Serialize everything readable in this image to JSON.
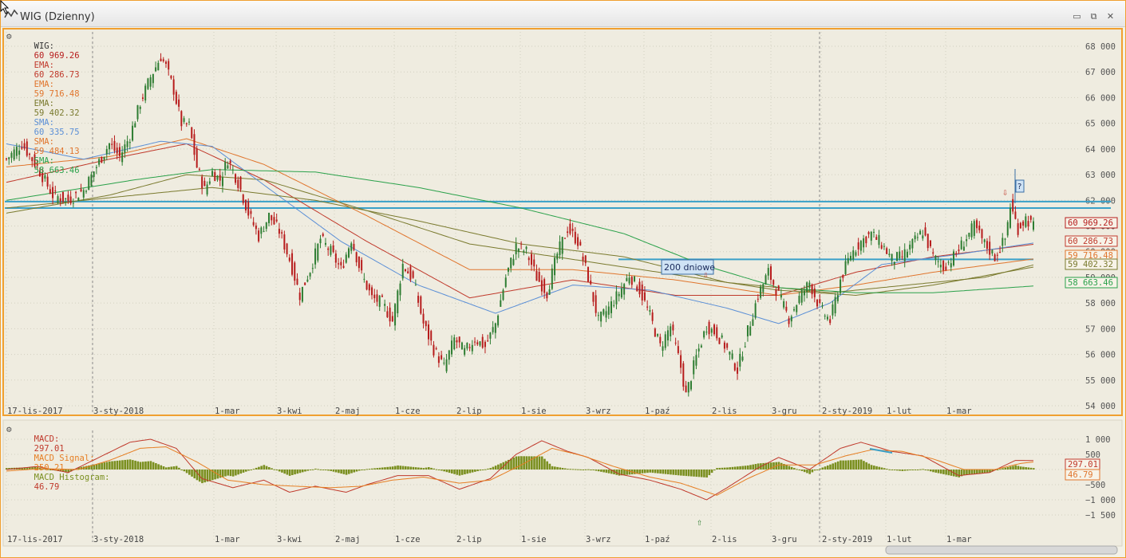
{
  "window": {
    "title": "WIG (Dzienny)",
    "buttons": [
      "minimize",
      "restore",
      "close"
    ]
  },
  "colors": {
    "up": "#2e7d32",
    "down": "#b71c1c",
    "ema60": "#e0752d",
    "ema59": "#c86a3a",
    "sma60": "#5b8fd6",
    "sma59": "#7a7a2e",
    "sma58": "#2aa14a",
    "macd": "#c0392b",
    "signal": "#e67e22",
    "hist": "#7a8f1f",
    "hline": "#3aa0c8"
  },
  "price_legend": {
    "wig_label": "WIG:",
    "wig_value": "60 969.26",
    "ema60_label": "EMA:",
    "ema60_value": "60 286.73",
    "ema59_label": "EMA:",
    "ema59_value": "59 716.48",
    "ema59b_label": "EMA:",
    "ema59b_value": "59 402.32",
    "sma60_label": "SMA:",
    "sma60_value": "60 335.75",
    "sma59_label": "SMA:",
    "sma59_value": "59 484.13",
    "sma58_label": "SMA:",
    "sma58_value": "58 663.46"
  },
  "macd_legend": {
    "macd_label": "MACD:",
    "macd_value": "297.01",
    "signal_label": "MACD Signal:",
    "signal_value": "250.21",
    "hist_label": "MACD Histogram:",
    "hist_value": "46.79"
  },
  "annotations": {
    "support_label": "200 dniowe",
    "question": "?"
  },
  "chart_data": [
    {
      "type": "candlestick",
      "title": "WIG (Dzienny)",
      "x_ticks": [
        "17-lis-2017",
        "3-sty-2018",
        "1-mar",
        "3-kwi",
        "2-maj",
        "1-cze",
        "2-lip",
        "1-sie",
        "3-wrz",
        "1-paź",
        "2-lis",
        "3-gru",
        "2-sty-2019",
        "1-lut",
        "1-mar"
      ],
      "y_ticks": [
        "68 000",
        "67 000",
        "66 000",
        "65 000",
        "64 000",
        "63 000",
        "62 000",
        "61 000",
        "60 000",
        "59 000",
        "58 000",
        "57 000",
        "56 000",
        "55 000",
        "54 000"
      ],
      "ylim": [
        54000,
        68000
      ],
      "horizontal_lines": [
        61950,
        61700,
        59700
      ],
      "close_path": [
        [
          0,
          63600
        ],
        [
          6,
          64200
        ],
        [
          12,
          63300
        ],
        [
          18,
          62200
        ],
        [
          24,
          62000
        ],
        [
          30,
          62400
        ],
        [
          36,
          63500
        ],
        [
          40,
          64200
        ],
        [
          44,
          63700
        ],
        [
          48,
          64500
        ],
        [
          52,
          65800
        ],
        [
          56,
          66800
        ],
        [
          60,
          67600
        ],
        [
          62,
          67200
        ],
        [
          65,
          66300
        ],
        [
          68,
          65000
        ],
        [
          71,
          64900
        ],
        [
          74,
          63300
        ],
        [
          77,
          62400
        ],
        [
          80,
          63100
        ],
        [
          83,
          62800
        ],
        [
          86,
          63600
        ],
        [
          90,
          62700
        ],
        [
          94,
          61500
        ],
        [
          98,
          60600
        ],
        [
          102,
          61400
        ],
        [
          106,
          60800
        ],
        [
          110,
          59700
        ],
        [
          114,
          58300
        ],
        [
          118,
          59300
        ],
        [
          122,
          60500
        ],
        [
          126,
          60000
        ],
        [
          130,
          59300
        ],
        [
          134,
          60500
        ],
        [
          138,
          59100
        ],
        [
          142,
          58200
        ],
        [
          146,
          58000
        ],
        [
          150,
          57300
        ],
        [
          154,
          59500
        ],
        [
          158,
          58900
        ],
        [
          162,
          57200
        ],
        [
          166,
          56200
        ],
        [
          170,
          55500
        ],
        [
          174,
          56600
        ],
        [
          178,
          56100
        ],
        [
          182,
          56600
        ],
        [
          186,
          56300
        ],
        [
          190,
          57200
        ],
        [
          194,
          59000
        ],
        [
          198,
          60200
        ],
        [
          202,
          60000
        ],
        [
          206,
          59000
        ],
        [
          210,
          58400
        ],
        [
          214,
          59900
        ],
        [
          218,
          60900
        ],
        [
          222,
          60400
        ],
        [
          226,
          59000
        ],
        [
          230,
          57300
        ],
        [
          234,
          57800
        ],
        [
          238,
          58400
        ],
        [
          242,
          59100
        ],
        [
          246,
          58500
        ],
        [
          250,
          57500
        ],
        [
          254,
          56300
        ],
        [
          258,
          57100
        ],
        [
          262,
          55500
        ],
        [
          264,
          54400
        ],
        [
          268,
          55900
        ],
        [
          272,
          57100
        ],
        [
          276,
          56800
        ],
        [
          280,
          56200
        ],
        [
          284,
          55400
        ],
        [
          288,
          56900
        ],
        [
          292,
          58300
        ],
        [
          296,
          59200
        ],
        [
          300,
          58300
        ],
        [
          304,
          57400
        ],
        [
          308,
          58200
        ],
        [
          312,
          58800
        ],
        [
          316,
          57800
        ],
        [
          320,
          57300
        ],
        [
          324,
          58900
        ],
        [
          328,
          59900
        ],
        [
          332,
          60400
        ],
        [
          336,
          60700
        ],
        [
          340,
          60300
        ],
        [
          344,
          59700
        ],
        [
          348,
          59800
        ],
        [
          352,
          60300
        ],
        [
          356,
          60800
        ],
        [
          360,
          59800
        ],
        [
          364,
          59400
        ],
        [
          368,
          59800
        ],
        [
          372,
          60400
        ],
        [
          376,
          61000
        ],
        [
          380,
          60300
        ],
        [
          384,
          59800
        ],
        [
          388,
          60500
        ],
        [
          390,
          61800
        ],
        [
          393,
          60900
        ],
        [
          396,
          61300
        ],
        [
          399,
          60969
        ]
      ],
      "series": [
        {
          "name": "EMA 60 286.73",
          "path": [
            [
              0,
              62700
            ],
            [
              40,
              63600
            ],
            [
              70,
              64200
            ],
            [
              100,
              62800
            ],
            [
              140,
              60400
            ],
            [
              180,
              58200
            ],
            [
              220,
              58900
            ],
            [
              260,
              58300
            ],
            [
              300,
              58300
            ],
            [
              330,
              59200
            ],
            [
              360,
              59800
            ],
            [
              399,
              60287
            ]
          ]
        },
        {
          "name": "EMA 59 716.48",
          "path": [
            [
              0,
              63300
            ],
            [
              40,
              63700
            ],
            [
              70,
              64400
            ],
            [
              100,
              63400
            ],
            [
              140,
              61400
            ],
            [
              180,
              59300
            ],
            [
              220,
              59300
            ],
            [
              260,
              58900
            ],
            [
              300,
              58300
            ],
            [
              330,
              58700
            ],
            [
              360,
              59200
            ],
            [
              399,
              59716
            ]
          ]
        },
        {
          "name": "EMA 59 402.32",
          "path": [
            [
              0,
              61500
            ],
            [
              40,
              62200
            ],
            [
              70,
              63000
            ],
            [
              100,
              62800
            ],
            [
              140,
              61600
            ],
            [
              180,
              60300
            ],
            [
              220,
              59700
            ],
            [
              260,
              59100
            ],
            [
              300,
              58500
            ],
            [
              330,
              58300
            ],
            [
              360,
              58700
            ],
            [
              399,
              59402
            ]
          ]
        },
        {
          "name": "SMA 60 335.75",
          "path": [
            [
              0,
              64200
            ],
            [
              30,
              63600
            ],
            [
              60,
              64300
            ],
            [
              80,
              64100
            ],
            [
              100,
              62600
            ],
            [
              130,
              60400
            ],
            [
              160,
              58700
            ],
            [
              190,
              57600
            ],
            [
              220,
              58700
            ],
            [
              250,
              58500
            ],
            [
              280,
              57800
            ],
            [
              300,
              57200
            ],
            [
              320,
              58000
            ],
            [
              340,
              59500
            ],
            [
              370,
              59900
            ],
            [
              399,
              60336
            ]
          ]
        },
        {
          "name": "SMA 59 484.13",
          "path": [
            [
              0,
              61700
            ],
            [
              50,
              62200
            ],
            [
              80,
              62500
            ],
            [
              120,
              62000
            ],
            [
              160,
              61200
            ],
            [
              200,
              60300
            ],
            [
              240,
              59800
            ],
            [
              280,
              58800
            ],
            [
              320,
              58400
            ],
            [
              350,
              58700
            ],
            [
              380,
              59000
            ],
            [
              399,
              59484
            ]
          ]
        },
        {
          "name": "SMA 58 663.46",
          "path": [
            [
              0,
              62000
            ],
            [
              50,
              62800
            ],
            [
              80,
              63200
            ],
            [
              120,
              63100
            ],
            [
              160,
              62500
            ],
            [
              200,
              61700
            ],
            [
              240,
              60700
            ],
            [
              270,
              59500
            ],
            [
              300,
              58600
            ],
            [
              330,
              58400
            ],
            [
              360,
              58400
            ],
            [
              399,
              58663
            ]
          ]
        }
      ]
    },
    {
      "type": "line",
      "title": "MACD",
      "y_ticks": [
        "1 000",
        "500",
        "0",
        "−500",
        "−1 000",
        "−1 500"
      ],
      "ylim": [
        -1500,
        1000
      ],
      "series": [
        {
          "name": "MACD: 297.01",
          "path": [
            [
              0,
              0
            ],
            [
              12,
              100
            ],
            [
              24,
              -100
            ],
            [
              36,
              400
            ],
            [
              48,
              900
            ],
            [
              56,
              1000
            ],
            [
              66,
              700
            ],
            [
              76,
              -300
            ],
            [
              88,
              -600
            ],
            [
              100,
              -350
            ],
            [
              110,
              -750
            ],
            [
              120,
              -550
            ],
            [
              132,
              -750
            ],
            [
              140,
              -500
            ],
            [
              152,
              -200
            ],
            [
              164,
              -200
            ],
            [
              176,
              -650
            ],
            [
              188,
              -300
            ],
            [
              198,
              500
            ],
            [
              208,
              950
            ],
            [
              218,
              600
            ],
            [
              226,
              400
            ],
            [
              238,
              -150
            ],
            [
              250,
              -350
            ],
            [
              262,
              -650
            ],
            [
              272,
              -1000
            ],
            [
              280,
              -600
            ],
            [
              292,
              50
            ],
            [
              300,
              400
            ],
            [
              312,
              0
            ],
            [
              324,
              700
            ],
            [
              332,
              900
            ],
            [
              344,
              600
            ],
            [
              356,
              450
            ],
            [
              370,
              -200
            ],
            [
              382,
              -100
            ],
            [
              392,
              300
            ],
            [
              399,
              297
            ]
          ]
        },
        {
          "name": "MACD Signal: 250.21",
          "path": [
            [
              0,
              -50
            ],
            [
              14,
              30
            ],
            [
              28,
              0
            ],
            [
              40,
              300
            ],
            [
              52,
              700
            ],
            [
              62,
              750
            ],
            [
              74,
              250
            ],
            [
              86,
              -350
            ],
            [
              100,
              -500
            ],
            [
              112,
              -550
            ],
            [
              126,
              -600
            ],
            [
              138,
              -550
            ],
            [
              150,
              -350
            ],
            [
              162,
              -250
            ],
            [
              176,
              -450
            ],
            [
              188,
              -350
            ],
            [
              200,
              150
            ],
            [
              212,
              700
            ],
            [
              224,
              450
            ],
            [
              236,
              100
            ],
            [
              250,
              -250
            ],
            [
              262,
              -450
            ],
            [
              276,
              -850
            ],
            [
              288,
              -300
            ],
            [
              300,
              150
            ],
            [
              314,
              150
            ],
            [
              326,
              450
            ],
            [
              336,
              650
            ],
            [
              348,
              600
            ],
            [
              360,
              350
            ],
            [
              372,
              0
            ],
            [
              384,
              0
            ],
            [
              394,
              200
            ],
            [
              399,
              250
            ]
          ]
        }
      ]
    }
  ]
}
